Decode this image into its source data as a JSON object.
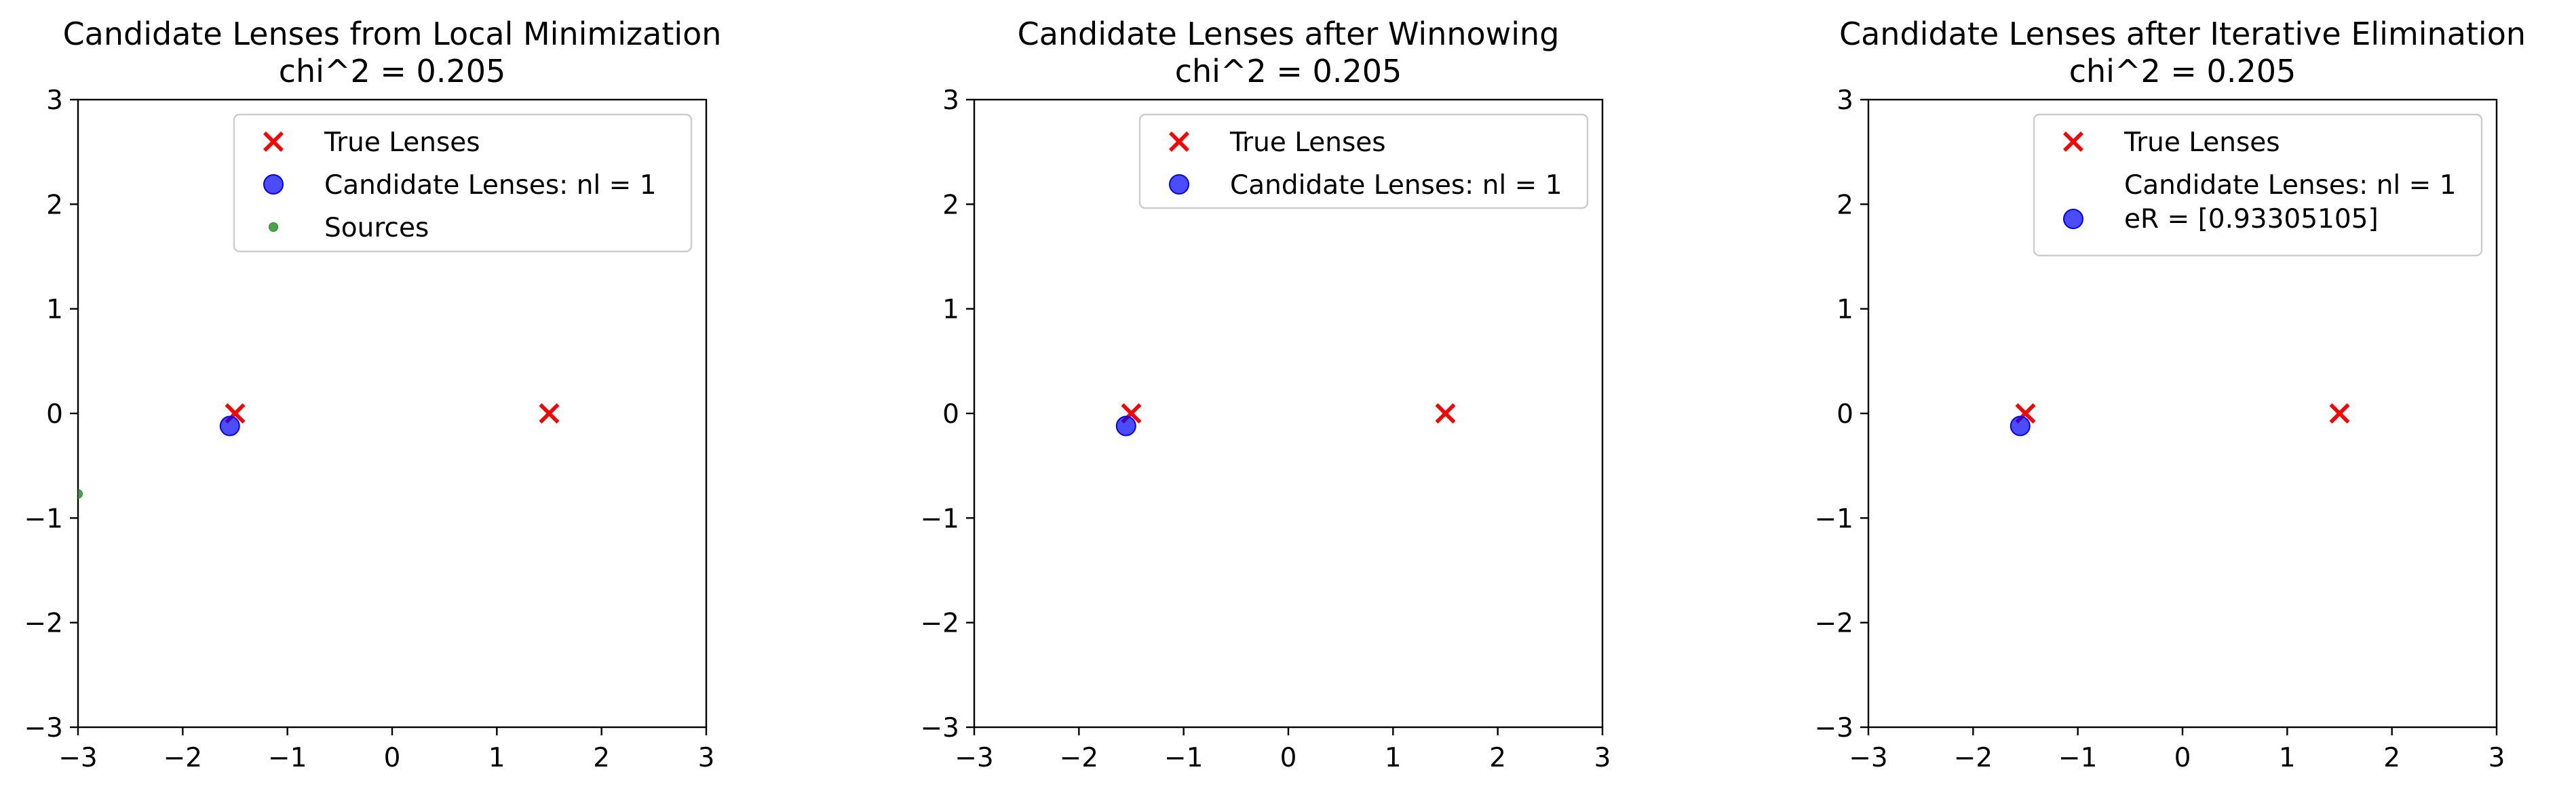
{
  "chart_data": [
    {
      "type": "scatter",
      "title": "Candidate Lenses from Local Minimization",
      "subtitle": "chi^2 = 0.205",
      "xlim": [
        -3,
        3
      ],
      "ylim": [
        -3,
        3
      ],
      "xticks": [
        "−3",
        "−2",
        "−1",
        "0",
        "1",
        "2",
        "3"
      ],
      "yticks": [
        "−3",
        "−2",
        "−1",
        "0",
        "1",
        "2",
        "3"
      ],
      "grid": false,
      "legend_position": "upper-right",
      "series": [
        {
          "name": "True Lenses",
          "marker": "x",
          "color": "#ff0000",
          "points": [
            [
              -1.5,
              0.0
            ],
            [
              1.5,
              0.0
            ]
          ]
        },
        {
          "name": "Candidate Lenses: nl = 1",
          "marker": "circle",
          "color": "#0000ff",
          "points": [
            [
              -1.55,
              -0.12
            ]
          ]
        },
        {
          "name": "Sources",
          "marker": "dot",
          "color": "#228b22",
          "points": [
            [
              -3.0,
              -0.77
            ]
          ]
        }
      ]
    },
    {
      "type": "scatter",
      "title": "Candidate Lenses after Winnowing",
      "subtitle": "chi^2 = 0.205",
      "xlim": [
        -3,
        3
      ],
      "ylim": [
        -3,
        3
      ],
      "xticks": [
        "−3",
        "−2",
        "−1",
        "0",
        "1",
        "2",
        "3"
      ],
      "yticks": [
        "−3",
        "−2",
        "−1",
        "0",
        "1",
        "2",
        "3"
      ],
      "grid": false,
      "legend_position": "upper-right",
      "series": [
        {
          "name": "True Lenses",
          "marker": "x",
          "color": "#ff0000",
          "points": [
            [
              -1.5,
              0.0
            ],
            [
              1.5,
              0.0
            ]
          ]
        },
        {
          "name": "Candidate Lenses: nl = 1",
          "marker": "circle",
          "color": "#0000ff",
          "points": [
            [
              -1.55,
              -0.12
            ]
          ]
        }
      ]
    },
    {
      "type": "scatter",
      "title": "Candidate Lenses after Iterative Elimination",
      "subtitle": "chi^2 = 0.205",
      "xlim": [
        -3,
        3
      ],
      "ylim": [
        -3,
        3
      ],
      "xticks": [
        "−3",
        "−2",
        "−1",
        "0",
        "1",
        "2",
        "3"
      ],
      "yticks": [
        "−3",
        "−2",
        "−1",
        "0",
        "1",
        "2",
        "3"
      ],
      "grid": false,
      "legend_position": "upper-right",
      "series": [
        {
          "name": "True Lenses",
          "marker": "x",
          "color": "#ff0000",
          "points": [
            [
              -1.5,
              0.0
            ],
            [
              1.5,
              0.0
            ]
          ]
        },
        {
          "name": "Candidate Lenses: nl = 1",
          "name_line2": " eR = [0.93305105]",
          "marker": "circle",
          "color": "#0000ff",
          "points": [
            [
              -1.55,
              -0.12
            ]
          ]
        }
      ]
    }
  ]
}
